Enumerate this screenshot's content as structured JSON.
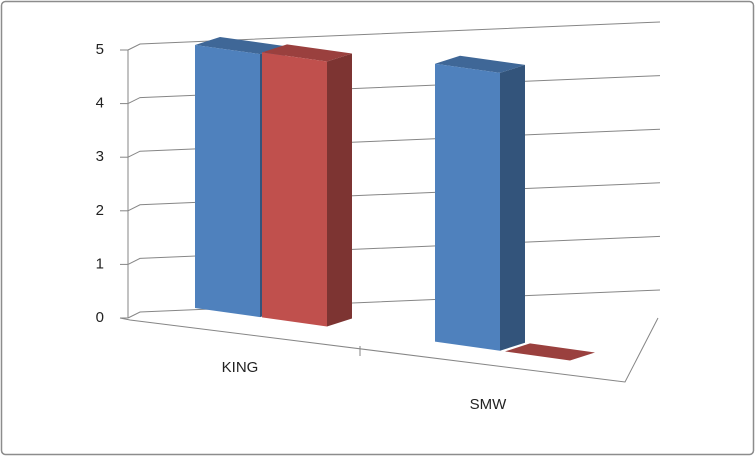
{
  "chart_data": {
    "type": "bar3d",
    "categories": [
      "KING",
      "SMW"
    ],
    "series": [
      {
        "color": "#4f81bd",
        "values": [
          5,
          4.8
        ]
      },
      {
        "color": "#c0504d",
        "values": [
          4.9,
          0
        ]
      }
    ],
    "ylim": [
      0,
      5
    ],
    "yticks": [
      0,
      1,
      2,
      3,
      4,
      5
    ],
    "grid": true
  }
}
